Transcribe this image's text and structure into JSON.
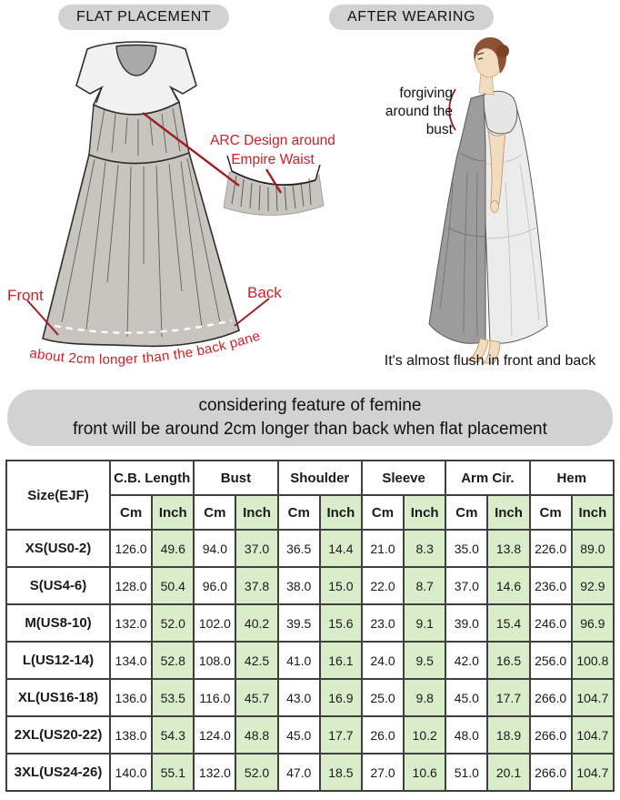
{
  "panels": {
    "flat": {
      "title": "FLAT PLACEMENT",
      "arc_note_line1": "ARC Design around",
      "arc_note_line2": "Empire Waist",
      "front_label": "Front",
      "back_label": "Back",
      "hem_note": "about 2cm longer than the back panel"
    },
    "wearing": {
      "title": "AFTER WEARING",
      "forgiving_line1": "forgiving",
      "forgiving_line2": "around the",
      "forgiving_line3": "bust",
      "flush_note": "It's almost flush in front and back"
    }
  },
  "banner": {
    "line1": "considering feature of femine",
    "line2": "front will be around 2cm longer than back when flat placement"
  },
  "colors": {
    "annotation_red": "#ce2129",
    "pointer_red": "#9f1d24",
    "inch_green": "#d9edca",
    "badge_gray": "#d2d2d2"
  },
  "table": {
    "size_header": "Size(EJF)",
    "groups": [
      "C.B. Length",
      "Bust",
      "Shoulder",
      "Sleeve",
      "Arm Cir.",
      "Hem"
    ],
    "unit_cm": "Cm",
    "unit_inch": "Inch",
    "rows": [
      {
        "size": "XS(US0-2)",
        "values": [
          "126.0",
          "49.6",
          "94.0",
          "37.0",
          "36.5",
          "14.4",
          "21.0",
          "8.3",
          "35.0",
          "13.8",
          "226.0",
          "89.0"
        ]
      },
      {
        "size": "S(US4-6)",
        "values": [
          "128.0",
          "50.4",
          "96.0",
          "37.8",
          "38.0",
          "15.0",
          "22.0",
          "8.7",
          "37.0",
          "14.6",
          "236.0",
          "92.9"
        ]
      },
      {
        "size": "M(US8-10)",
        "values": [
          "132.0",
          "52.0",
          "102.0",
          "40.2",
          "39.5",
          "15.6",
          "23.0",
          "9.1",
          "39.0",
          "15.4",
          "246.0",
          "96.9"
        ]
      },
      {
        "size": "L(US12-14)",
        "values": [
          "134.0",
          "52.8",
          "108.0",
          "42.5",
          "41.0",
          "16.1",
          "24.0",
          "9.5",
          "42.0",
          "16.5",
          "256.0",
          "100.8"
        ]
      },
      {
        "size": "XL(US16-18)",
        "values": [
          "136.0",
          "53.5",
          "116.0",
          "45.7",
          "43.0",
          "16.9",
          "25.0",
          "9.8",
          "45.0",
          "17.7",
          "266.0",
          "104.7"
        ]
      },
      {
        "size": "2XL(US20-22)",
        "values": [
          "138.0",
          "54.3",
          "124.0",
          "48.8",
          "45.0",
          "17.7",
          "26.0",
          "10.2",
          "48.0",
          "18.9",
          "266.0",
          "104.7"
        ]
      },
      {
        "size": "3XL(US24-26)",
        "values": [
          "140.0",
          "55.1",
          "132.0",
          "52.0",
          "47.0",
          "18.5",
          "27.0",
          "10.6",
          "51.0",
          "20.1",
          "266.0",
          "104.7"
        ]
      }
    ]
  }
}
